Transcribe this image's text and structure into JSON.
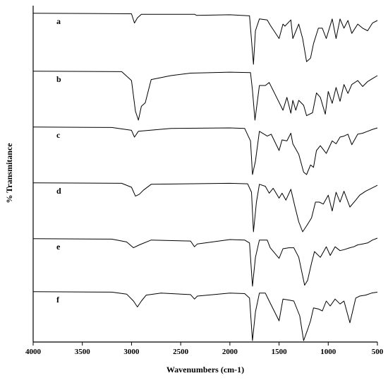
{
  "chart_data": {
    "type": "line",
    "xlabel": "Wavenumbers (cm-1)",
    "ylabel": "% Transmitance",
    "xlim": [
      4000,
      500
    ],
    "x_direction": "reversed",
    "x_ticks": [
      4000,
      3500,
      3000,
      2500,
      2000,
      1500,
      1000,
      500
    ],
    "y_ticks_shown": false,
    "grid": false,
    "legend": "none",
    "line_color": "#000000",
    "series": [
      {
        "name": "a",
        "points": [
          [
            4000,
            0.99
          ],
          [
            3000,
            0.98
          ],
          [
            2970,
            0.8
          ],
          [
            2940,
            0.9
          ],
          [
            2900,
            0.97
          ],
          [
            2360,
            0.97
          ],
          [
            2340,
            0.95
          ],
          [
            2000,
            0.96
          ],
          [
            1800,
            0.94
          ],
          [
            1760,
            0.0
          ],
          [
            1740,
            0.65
          ],
          [
            1700,
            0.88
          ],
          [
            1620,
            0.86
          ],
          [
            1590,
            0.76
          ],
          [
            1500,
            0.5
          ],
          [
            1460,
            0.78
          ],
          [
            1440,
            0.74
          ],
          [
            1380,
            0.86
          ],
          [
            1360,
            0.5
          ],
          [
            1300,
            0.78
          ],
          [
            1260,
            0.5
          ],
          [
            1220,
            0.05
          ],
          [
            1180,
            0.12
          ],
          [
            1150,
            0.4
          ],
          [
            1100,
            0.7
          ],
          [
            1060,
            0.7
          ],
          [
            1020,
            0.5
          ],
          [
            960,
            0.88
          ],
          [
            920,
            0.5
          ],
          [
            880,
            0.88
          ],
          [
            840,
            0.7
          ],
          [
            800,
            0.85
          ],
          [
            760,
            0.6
          ],
          [
            700,
            0.78
          ],
          [
            650,
            0.7
          ],
          [
            600,
            0.65
          ],
          [
            550,
            0.8
          ],
          [
            500,
            0.85
          ]
        ]
      },
      {
        "name": "b",
        "points": [
          [
            4000,
            0.99
          ],
          [
            3100,
            0.98
          ],
          [
            3000,
            0.8
          ],
          [
            2960,
            0.18
          ],
          [
            2930,
            0.0
          ],
          [
            2900,
            0.28
          ],
          [
            2860,
            0.35
          ],
          [
            2800,
            0.82
          ],
          [
            2600,
            0.9
          ],
          [
            2400,
            0.95
          ],
          [
            2000,
            0.97
          ],
          [
            1790,
            0.96
          ],
          [
            1770,
            0.6
          ],
          [
            1745,
            0.0
          ],
          [
            1700,
            0.7
          ],
          [
            1640,
            0.7
          ],
          [
            1600,
            0.76
          ],
          [
            1500,
            0.36
          ],
          [
            1460,
            0.2
          ],
          [
            1420,
            0.46
          ],
          [
            1380,
            0.14
          ],
          [
            1360,
            0.4
          ],
          [
            1330,
            0.2
          ],
          [
            1300,
            0.4
          ],
          [
            1250,
            0.3
          ],
          [
            1220,
            0.09
          ],
          [
            1160,
            0.15
          ],
          [
            1120,
            0.55
          ],
          [
            1080,
            0.46
          ],
          [
            1030,
            0.12
          ],
          [
            1000,
            0.58
          ],
          [
            960,
            0.34
          ],
          [
            920,
            0.66
          ],
          [
            880,
            0.38
          ],
          [
            840,
            0.72
          ],
          [
            800,
            0.54
          ],
          [
            760,
            0.72
          ],
          [
            700,
            0.8
          ],
          [
            650,
            0.68
          ],
          [
            600,
            0.78
          ],
          [
            550,
            0.84
          ],
          [
            500,
            0.9
          ]
        ]
      },
      {
        "name": "c",
        "points": [
          [
            4000,
            0.99
          ],
          [
            3200,
            0.98
          ],
          [
            3000,
            0.92
          ],
          [
            2970,
            0.78
          ],
          [
            2930,
            0.9
          ],
          [
            2600,
            0.96
          ],
          [
            2000,
            0.97
          ],
          [
            1850,
            0.96
          ],
          [
            1790,
            0.7
          ],
          [
            1770,
            0.0
          ],
          [
            1740,
            0.28
          ],
          [
            1700,
            0.9
          ],
          [
            1620,
            0.8
          ],
          [
            1580,
            0.84
          ],
          [
            1500,
            0.5
          ],
          [
            1470,
            0.72
          ],
          [
            1420,
            0.7
          ],
          [
            1380,
            0.86
          ],
          [
            1360,
            0.64
          ],
          [
            1300,
            0.42
          ],
          [
            1250,
            0.05
          ],
          [
            1220,
            0.0
          ],
          [
            1180,
            0.2
          ],
          [
            1150,
            0.15
          ],
          [
            1120,
            0.5
          ],
          [
            1080,
            0.6
          ],
          [
            1020,
            0.44
          ],
          [
            960,
            0.7
          ],
          [
            920,
            0.64
          ],
          [
            880,
            0.78
          ],
          [
            840,
            0.8
          ],
          [
            800,
            0.84
          ],
          [
            760,
            0.62
          ],
          [
            700,
            0.84
          ],
          [
            650,
            0.86
          ],
          [
            600,
            0.9
          ],
          [
            550,
            0.94
          ],
          [
            500,
            0.97
          ]
        ]
      },
      {
        "name": "d",
        "points": [
          [
            4000,
            0.99
          ],
          [
            3100,
            0.98
          ],
          [
            3000,
            0.9
          ],
          [
            2960,
            0.72
          ],
          [
            2920,
            0.76
          ],
          [
            2880,
            0.84
          ],
          [
            2800,
            0.96
          ],
          [
            2000,
            0.98
          ],
          [
            1820,
            0.97
          ],
          [
            1780,
            0.8
          ],
          [
            1760,
            0.0
          ],
          [
            1730,
            0.6
          ],
          [
            1700,
            0.96
          ],
          [
            1640,
            0.92
          ],
          [
            1600,
            0.78
          ],
          [
            1560,
            0.88
          ],
          [
            1500,
            0.68
          ],
          [
            1470,
            0.78
          ],
          [
            1430,
            0.64
          ],
          [
            1380,
            0.86
          ],
          [
            1340,
            0.52
          ],
          [
            1300,
            0.2
          ],
          [
            1260,
            0.0
          ],
          [
            1220,
            0.12
          ],
          [
            1170,
            0.28
          ],
          [
            1130,
            0.6
          ],
          [
            1090,
            0.6
          ],
          [
            1050,
            0.56
          ],
          [
            1000,
            0.74
          ],
          [
            960,
            0.42
          ],
          [
            920,
            0.8
          ],
          [
            880,
            0.6
          ],
          [
            840,
            0.82
          ],
          [
            780,
            0.5
          ],
          [
            720,
            0.64
          ],
          [
            680,
            0.74
          ],
          [
            620,
            0.82
          ],
          [
            560,
            0.88
          ],
          [
            500,
            0.94
          ]
        ]
      },
      {
        "name": "e",
        "points": [
          [
            4000,
            0.99
          ],
          [
            3200,
            0.98
          ],
          [
            3050,
            0.92
          ],
          [
            2980,
            0.8
          ],
          [
            2920,
            0.86
          ],
          [
            2800,
            0.96
          ],
          [
            2400,
            0.94
          ],
          [
            2360,
            0.82
          ],
          [
            2330,
            0.88
          ],
          [
            2000,
            0.97
          ],
          [
            1850,
            0.96
          ],
          [
            1800,
            0.9
          ],
          [
            1770,
            0.0
          ],
          [
            1740,
            0.6
          ],
          [
            1700,
            0.96
          ],
          [
            1620,
            0.96
          ],
          [
            1590,
            0.8
          ],
          [
            1500,
            0.58
          ],
          [
            1460,
            0.78
          ],
          [
            1400,
            0.8
          ],
          [
            1350,
            0.8
          ],
          [
            1300,
            0.6
          ],
          [
            1240,
            0.02
          ],
          [
            1210,
            0.12
          ],
          [
            1170,
            0.48
          ],
          [
            1140,
            0.72
          ],
          [
            1080,
            0.6
          ],
          [
            1020,
            0.82
          ],
          [
            980,
            0.64
          ],
          [
            930,
            0.82
          ],
          [
            880,
            0.74
          ],
          [
            840,
            0.76
          ],
          [
            780,
            0.8
          ],
          [
            740,
            0.82
          ],
          [
            700,
            0.86
          ],
          [
            650,
            0.88
          ],
          [
            600,
            0.9
          ],
          [
            550,
            0.96
          ],
          [
            500,
            1.0
          ]
        ]
      },
      {
        "name": "f",
        "points": [
          [
            4000,
            0.99
          ],
          [
            3200,
            0.98
          ],
          [
            3050,
            0.94
          ],
          [
            2980,
            0.8
          ],
          [
            2940,
            0.68
          ],
          [
            2900,
            0.8
          ],
          [
            2850,
            0.92
          ],
          [
            2700,
            0.96
          ],
          [
            2400,
            0.93
          ],
          [
            2360,
            0.84
          ],
          [
            2330,
            0.9
          ],
          [
            2000,
            0.96
          ],
          [
            1850,
            0.95
          ],
          [
            1800,
            0.86
          ],
          [
            1770,
            0.0
          ],
          [
            1740,
            0.58
          ],
          [
            1700,
            0.96
          ],
          [
            1640,
            0.96
          ],
          [
            1600,
            0.8
          ],
          [
            1500,
            0.4
          ],
          [
            1460,
            0.84
          ],
          [
            1400,
            0.82
          ],
          [
            1350,
            0.8
          ],
          [
            1290,
            0.5
          ],
          [
            1250,
            0.0
          ],
          [
            1210,
            0.22
          ],
          [
            1180,
            0.4
          ],
          [
            1150,
            0.66
          ],
          [
            1100,
            0.64
          ],
          [
            1060,
            0.6
          ],
          [
            1020,
            0.8
          ],
          [
            980,
            0.7
          ],
          [
            930,
            0.84
          ],
          [
            880,
            0.74
          ],
          [
            840,
            0.8
          ],
          [
            780,
            0.36
          ],
          [
            720,
            0.86
          ],
          [
            680,
            0.9
          ],
          [
            620,
            0.92
          ],
          [
            560,
            0.96
          ],
          [
            500,
            0.98
          ]
        ]
      }
    ]
  }
}
